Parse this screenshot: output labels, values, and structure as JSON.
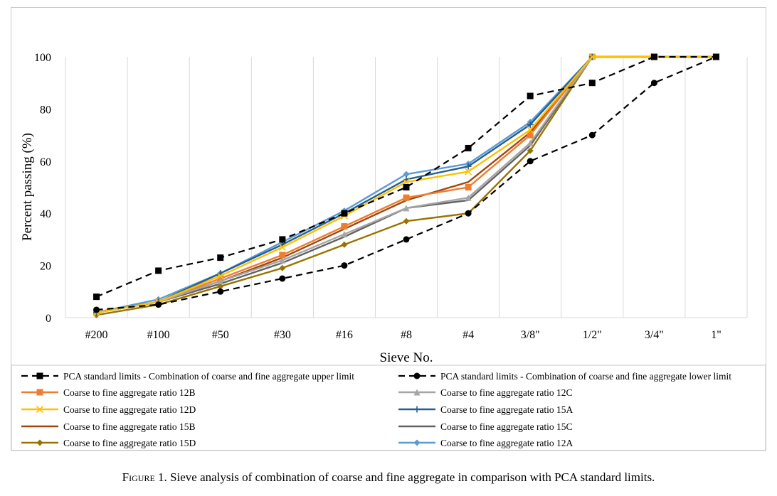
{
  "caption": {
    "label": "Figure 1.",
    "text": " Sieve analysis of combination of coarse and fine aggregate in comparison with PCA standard limits."
  },
  "chart_data": {
    "type": "line",
    "xlabel": "Sieve No.",
    "ylabel": "Percent passing (%)",
    "ylim": [
      0,
      100
    ],
    "yticks": [
      0,
      20,
      40,
      60,
      80,
      100
    ],
    "grid": "vertical",
    "legend_position": "bottom",
    "categories": [
      "#200",
      "#100",
      "#50",
      "#30",
      "#16",
      "#8",
      "#4",
      "3/8\"",
      "1/2\"",
      "3/4\"",
      "1\""
    ],
    "series": [
      {
        "name": "PCA standard limits - Combination of coarse and fine aggregate upper limit",
        "color": "#000000",
        "dash": true,
        "marker": "square",
        "values": [
          8,
          18,
          23,
          30,
          40,
          50,
          65,
          85,
          90,
          100,
          100
        ]
      },
      {
        "name": "PCA standard limits - Combination of coarse and fine aggregate lower limit",
        "color": "#000000",
        "dash": true,
        "marker": "circle",
        "values": [
          3,
          5,
          10,
          15,
          20,
          30,
          40,
          60,
          70,
          90,
          100
        ]
      },
      {
        "name": "Coarse to fine aggregate ratio 12B",
        "color": "#ED7D31",
        "dash": false,
        "marker": "square",
        "values": [
          2,
          6,
          15,
          24,
          35,
          46,
          50,
          70,
          100,
          100,
          100
        ]
      },
      {
        "name": "Coarse to fine aggregate ratio 12C",
        "color": "#A5A5A5",
        "dash": false,
        "marker": "triangle",
        "values": [
          2,
          6,
          14,
          22,
          32,
          42,
          46,
          67,
          100,
          100,
          100
        ]
      },
      {
        "name": "Coarse to fine aggregate ratio 12D",
        "color": "#FFC000",
        "dash": false,
        "marker": "x",
        "values": [
          2,
          6,
          16,
          27,
          39,
          52,
          56,
          72,
          100,
          100,
          100
        ]
      },
      {
        "name": "Coarse to fine aggregate ratio 15A",
        "color": "#255E91",
        "dash": false,
        "marker": "plus",
        "values": [
          2,
          6,
          17,
          28,
          40,
          53,
          58,
          74,
          100,
          100,
          100
        ]
      },
      {
        "name": "Coarse to fine aggregate ratio 15B",
        "color": "#9E480E",
        "dash": false,
        "marker": "none",
        "values": [
          2,
          6,
          14,
          23,
          34,
          45,
          52,
          71,
          100,
          100,
          100
        ]
      },
      {
        "name": "Coarse to fine aggregate ratio 15C",
        "color": "#636363",
        "dash": false,
        "marker": "none",
        "values": [
          2,
          6,
          13,
          21,
          31,
          42,
          45,
          66,
          100,
          100,
          100
        ]
      },
      {
        "name": "Coarse to fine aggregate ratio 15D",
        "color": "#997300",
        "dash": false,
        "marker": "diamond",
        "values": [
          1,
          5,
          12,
          19,
          28,
          37,
          40,
          64,
          100,
          100,
          100
        ]
      },
      {
        "name": "Coarse to fine aggregate ratio 12A",
        "color": "#5B9BD5",
        "dash": false,
        "marker": "diamond",
        "values": [
          2,
          7,
          17,
          29,
          41,
          55,
          59,
          75,
          100,
          100,
          100
        ]
      }
    ],
    "draw_order": [
      9,
      7,
      8,
      6,
      2,
      3,
      5,
      4,
      0,
      1
    ]
  }
}
